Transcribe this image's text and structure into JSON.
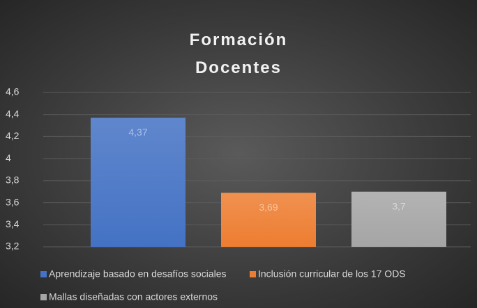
{
  "chart_data": {
    "type": "bar",
    "title": "Formación Docentes",
    "categories": [
      null
    ],
    "series": [
      {
        "name": "Aprendizaje basado en desafíos sociales",
        "color": "#4472c4",
        "values": [
          4.37
        ],
        "value_labels": [
          "4,37"
        ]
      },
      {
        "name": "Inclusión curricular de los 17 ODS",
        "color": "#ed7d31",
        "values": [
          3.69
        ],
        "value_labels": [
          "3,69"
        ]
      },
      {
        "name": "Mallas diseñadas con actores externos",
        "color": "#a5a5a5",
        "values": [
          3.7
        ],
        "value_labels": [
          "3,7"
        ]
      }
    ],
    "ylim": [
      3.2,
      4.6
    ],
    "yticks": [
      {
        "value": 3.2,
        "label": "3,2"
      },
      {
        "value": 3.4,
        "label": "3,4"
      },
      {
        "value": 3.6,
        "label": "3,6"
      },
      {
        "value": 3.8,
        "label": "3,8"
      },
      4,
      {
        "value": 4.2,
        "label": "4,2"
      },
      {
        "value": 4.4,
        "label": "4,4"
      },
      {
        "value": 4.6,
        "label": "4,6"
      }
    ],
    "grid": true,
    "legend": "bottom"
  }
}
